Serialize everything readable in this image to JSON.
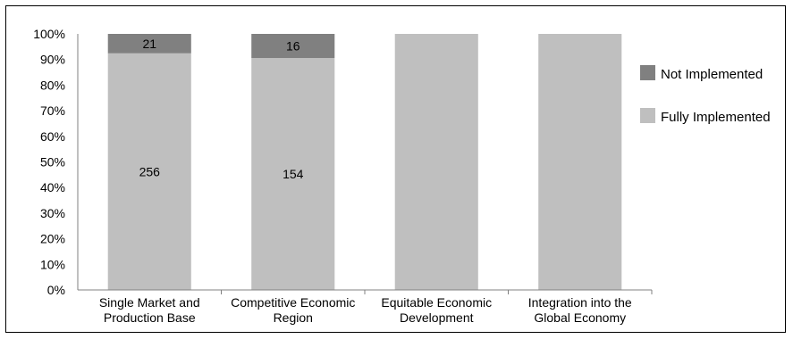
{
  "chart_data": {
    "type": "bar",
    "stacked": "percent",
    "title": "",
    "xlabel": "",
    "ylabel": "",
    "ylim": [
      0,
      100
    ],
    "yticks": [
      "0%",
      "10%",
      "20%",
      "30%",
      "40%",
      "50%",
      "60%",
      "70%",
      "80%",
      "90%",
      "100%"
    ],
    "categories": [
      [
        "Single Market and",
        "Production Base"
      ],
      [
        "Competitive Economic",
        "Region"
      ],
      [
        "Equitable Economic",
        "Development"
      ],
      [
        "Integration into the",
        "Global Economy"
      ]
    ],
    "series": [
      {
        "name": "Fully Implemented",
        "color": "#bfbfbf",
        "counts": [
          256,
          154,
          null,
          null
        ],
        "labels": [
          "256",
          "154",
          "",
          ""
        ]
      },
      {
        "name": "Not Implemented",
        "color": "#808080",
        "counts": [
          21,
          16,
          null,
          null
        ],
        "labels": [
          "21",
          "16",
          "",
          ""
        ]
      }
    ],
    "legend_position": "right",
    "grid": false
  }
}
